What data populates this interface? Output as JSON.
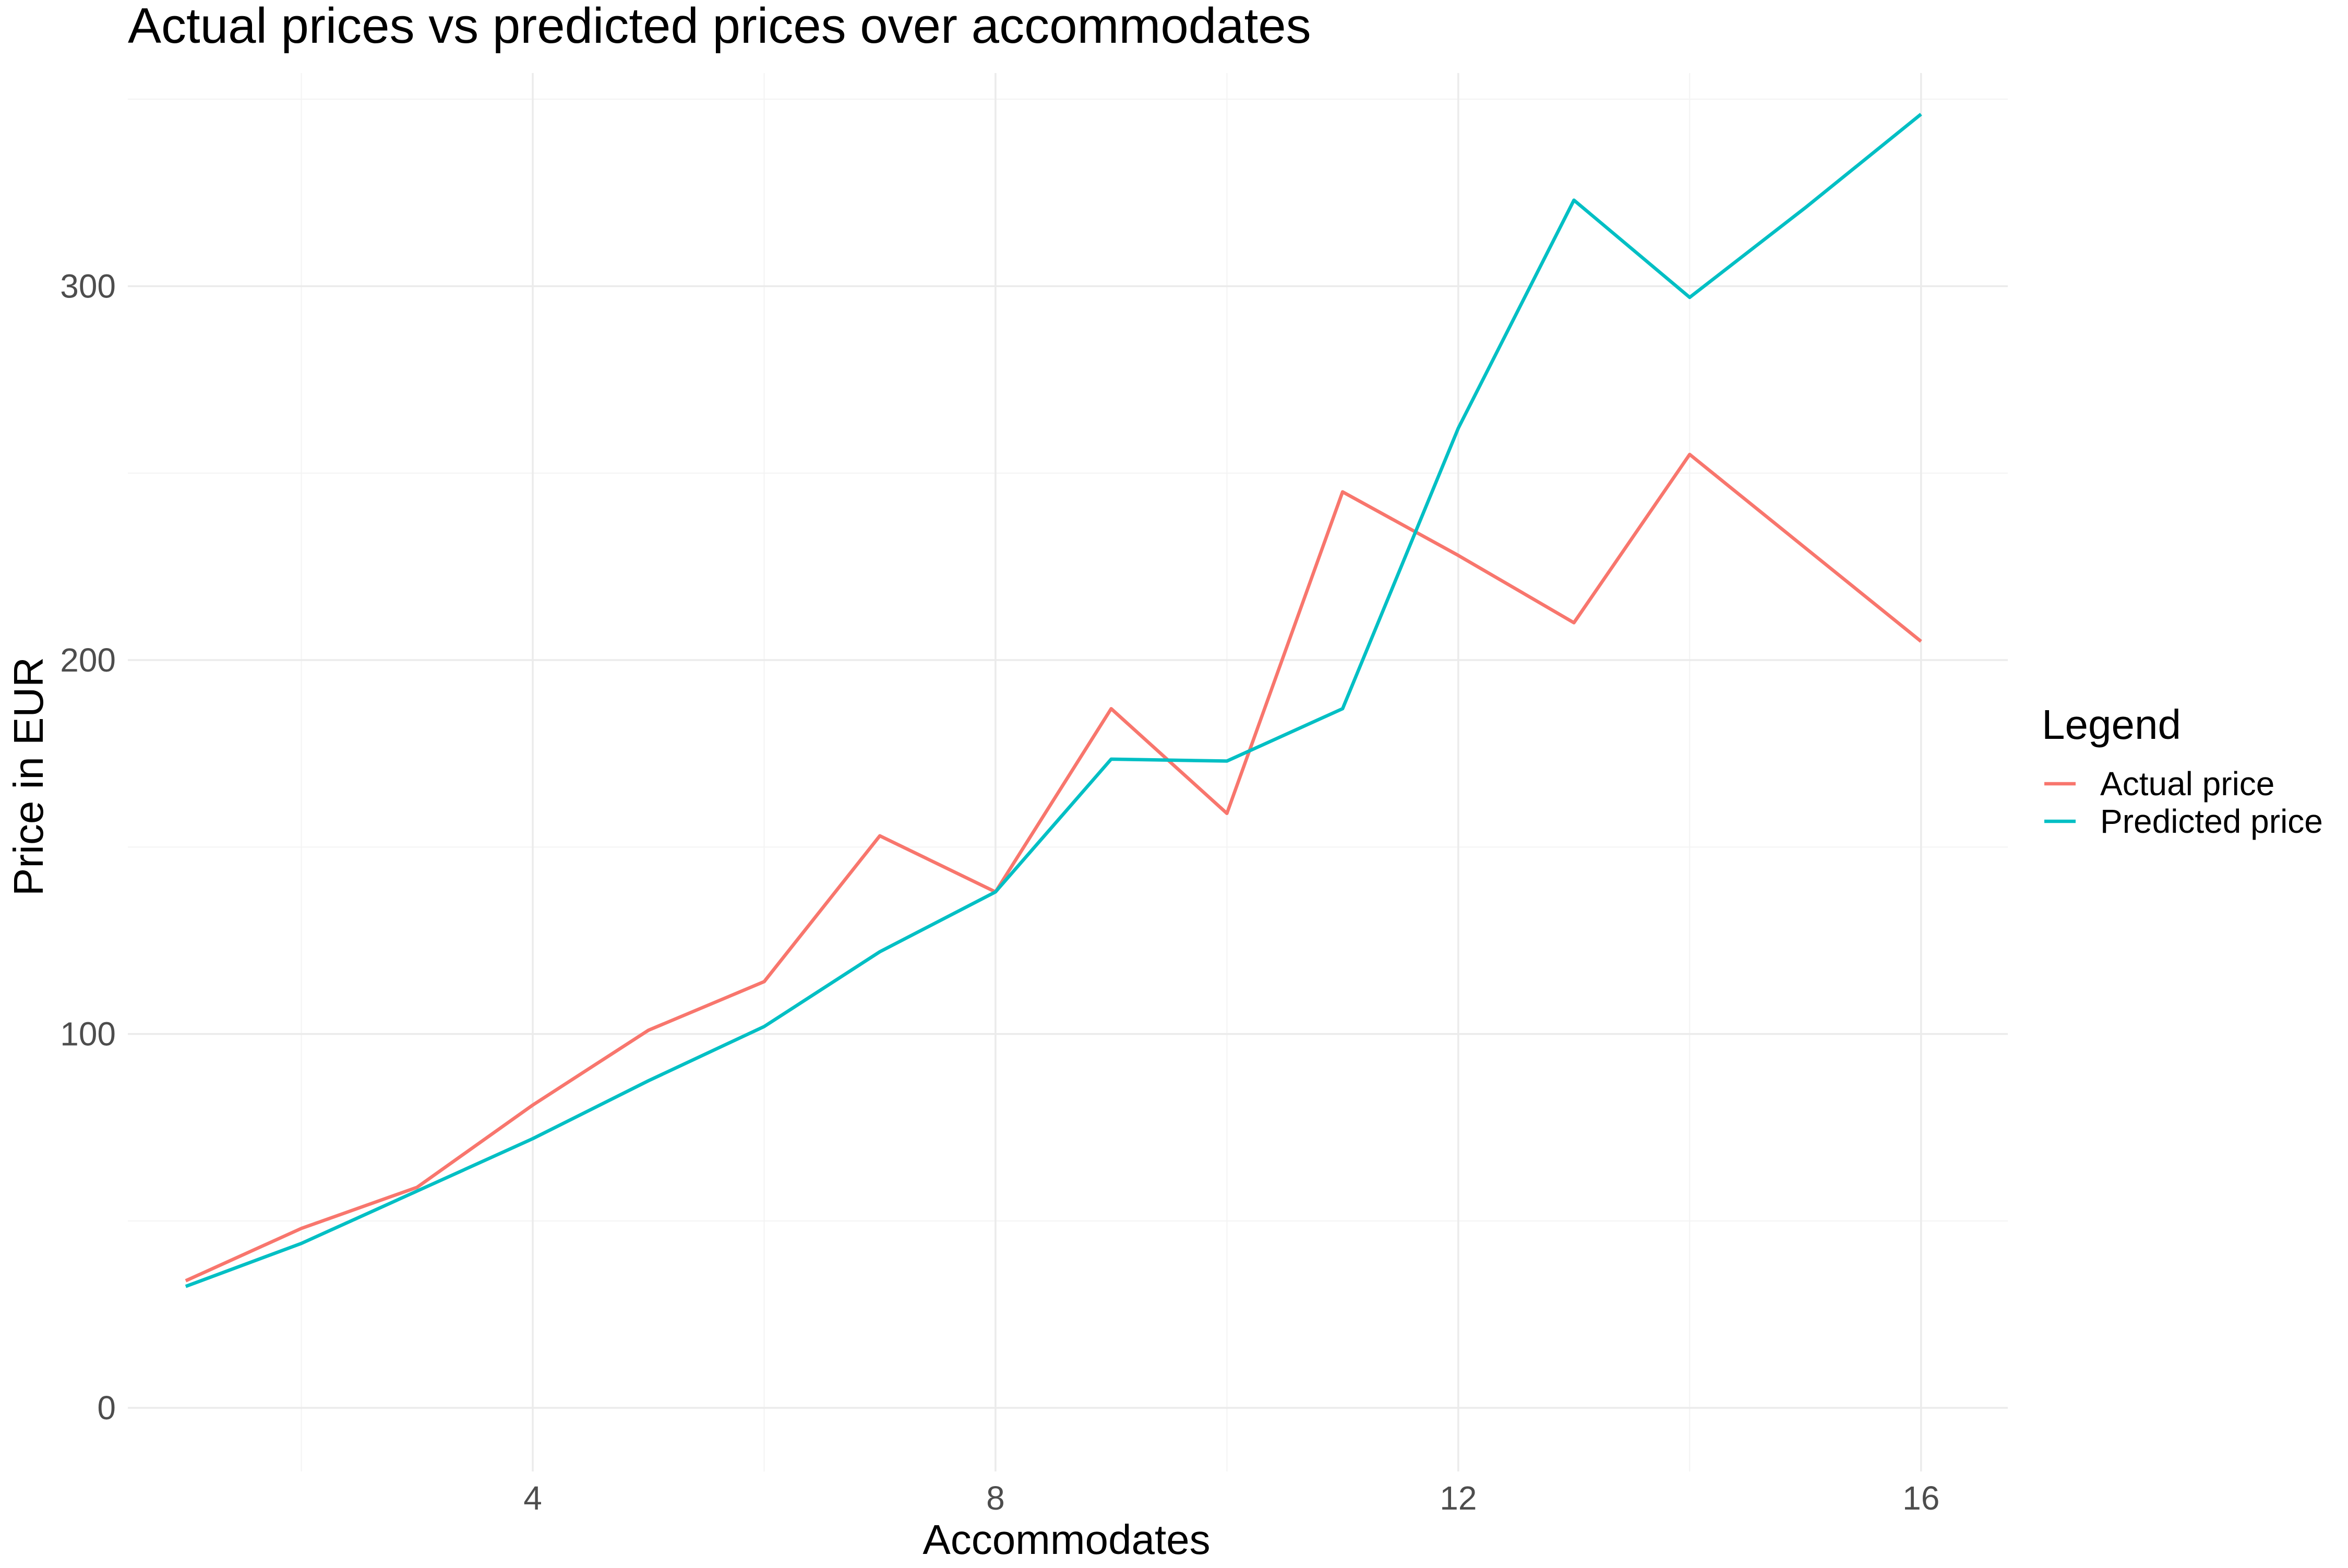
{
  "chart_data": {
    "type": "line",
    "title": "Actual prices vs predicted prices over accommodates",
    "xlabel": "Accommodates",
    "ylabel": "Price in EUR",
    "xlim": [
      0.5,
      16.75
    ],
    "ylim": [
      -17,
      357
    ],
    "x_ticks": [
      4,
      8,
      12,
      16
    ],
    "y_ticks": [
      0,
      100,
      200,
      300
    ],
    "x_minor": [
      2,
      6,
      10,
      14
    ],
    "y_minor": [
      50,
      150,
      250,
      350
    ],
    "grid": true,
    "legend_title": "Legend",
    "legend_position": "right",
    "x": [
      1,
      2,
      3,
      4,
      5,
      6,
      7,
      8,
      9,
      10,
      11,
      12,
      13,
      14,
      15,
      16
    ],
    "series": [
      {
        "name": "Actual price",
        "color": "#F8766D",
        "values": [
          34,
          48,
          59,
          81,
          101,
          114,
          153,
          138,
          187,
          159,
          245,
          228,
          210,
          255,
          230,
          205
        ]
      },
      {
        "name": "Predicted price",
        "color": "#00BFC4",
        "values": [
          32.5,
          44,
          58,
          72,
          87.5,
          102,
          122,
          138,
          173.5,
          173,
          187,
          262,
          323,
          297,
          321,
          346
        ]
      }
    ]
  }
}
